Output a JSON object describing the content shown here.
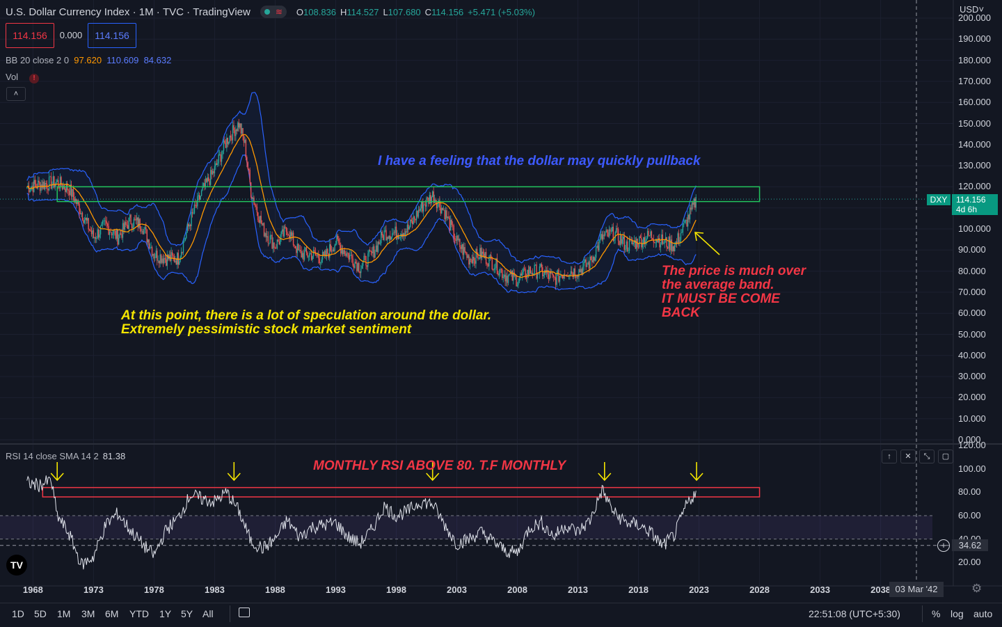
{
  "header": {
    "symbol": "U.S. Dollar Currency Index",
    "sep1": "·",
    "interval": "1M",
    "sep2": "·",
    "exchange": "TVC",
    "sep3": "·",
    "source": "TradingView",
    "pill_icon": "≋",
    "o_label": "O",
    "o_value": "108.836",
    "h_label": "H",
    "h_value": "114.527",
    "l_label": "L",
    "l_value": "107.680",
    "c_label": "C",
    "c_value": "114.156",
    "change": "+5.471 (+5.03%)"
  },
  "order": {
    "sell": "114.156",
    "spread": "0.000",
    "buy": "114.156"
  },
  "bb": {
    "label": "BB 20 close 2 0",
    "basis": "97.620",
    "upper": "110.609",
    "lower": "84.632"
  },
  "vol": {
    "label": "Vol",
    "warn": "!"
  },
  "collapse_icon": "chevron-up-icon",
  "collapse_glyph": "˄",
  "rsi": {
    "label": "RSI 14 close SMA 14 2",
    "value": "81.38",
    "current_tag": "34.62"
  },
  "annotations": {
    "pullback": "I have a feeling that the dollar may quickly pullback",
    "speculation_1": "At this point, there is a lot of speculation around the dollar.",
    "speculation_2": "Extremely pessimistic stock market sentiment",
    "over_1": "The price is much over",
    "over_2": "the average band.",
    "over_3": "IT MUST BE COME",
    "over_4": "BACK",
    "rsi_note": "MONTHLY RSI ABOVE 80. T.F MONTHLY"
  },
  "price_axis": {
    "currency": "USD˅",
    "ticks": [
      "200.000",
      "190.000",
      "180.000",
      "170.000",
      "160.000",
      "150.000",
      "140.000",
      "130.000",
      "120.000",
      "110.000",
      "100.000",
      "90.000",
      "80.000",
      "70.000",
      "60.000",
      "50.000",
      "40.000",
      "30.000",
      "20.000",
      "10.000",
      "0.000"
    ],
    "symbol_tag": "DXY",
    "last_price": "114.156",
    "countdown": "4d 6h"
  },
  "rsi_axis": {
    "ticks": [
      "120.00",
      "100.00",
      "80.00",
      "60.00",
      "40.00",
      "20.00"
    ]
  },
  "time_axis": {
    "ticks": [
      "1968",
      "1973",
      "1978",
      "1983",
      "1988",
      "1993",
      "1998",
      "2003",
      "2008",
      "2013",
      "2018",
      "2023",
      "2028",
      "2033",
      "2038"
    ],
    "crosshair_date": "03 Mar '42"
  },
  "pane_buttons": [
    "↑",
    "✕",
    "⤡",
    "▢"
  ],
  "bottom_bar": {
    "timeframes": [
      "1D",
      "5D",
      "1M",
      "3M",
      "6M",
      "YTD",
      "1Y",
      "5Y",
      "All"
    ],
    "clock": "22:51:08 (UTC+5:30)",
    "pct": "%",
    "log": "log",
    "auto": "auto"
  },
  "logo_text": "TV",
  "colors": {
    "bg": "#131722",
    "up": "#26a69a",
    "down": "#ef5350",
    "bb_basis": "#ff9800",
    "bb_band": "#2962ff",
    "zone": "#22c55e",
    "rsi_zone": "#f23645"
  },
  "chart_data": [
    {
      "type": "candlestick",
      "symbol": "DXY",
      "interval": "1M",
      "x_range": [
        1967,
        2044
      ],
      "ylim": [
        0,
        200
      ],
      "indicators": [
        "BB 20 close 2 0"
      ],
      "close_path": [
        [
          1967.5,
          120
        ],
        [
          1968.5,
          121
        ],
        [
          1970,
          122
        ],
        [
          1971,
          119
        ],
        [
          1972,
          108
        ],
        [
          1973,
          96
        ],
        [
          1974,
          102
        ],
        [
          1975,
          96
        ],
        [
          1976,
          104
        ],
        [
          1977,
          102
        ],
        [
          1978,
          88
        ],
        [
          1979,
          86
        ],
        [
          1980,
          86
        ],
        [
          1981,
          104
        ],
        [
          1982,
          118
        ],
        [
          1983,
          128
        ],
        [
          1984,
          142
        ],
        [
          1985,
          150
        ],
        [
          1985.5,
          140
        ],
        [
          1986,
          118
        ],
        [
          1987,
          100
        ],
        [
          1988,
          92
        ],
        [
          1989,
          100
        ],
        [
          1990,
          88
        ],
        [
          1991,
          88
        ],
        [
          1992,
          86
        ],
        [
          1993,
          94
        ],
        [
          1994,
          88
        ],
        [
          1995,
          82
        ],
        [
          1996,
          88
        ],
        [
          1997,
          98
        ],
        [
          1998,
          98
        ],
        [
          1999,
          100
        ],
        [
          2000,
          110
        ],
        [
          2001,
          116
        ],
        [
          2002,
          108
        ],
        [
          2003,
          94
        ],
        [
          2004,
          86
        ],
        [
          2005,
          88
        ],
        [
          2006,
          84
        ],
        [
          2007,
          78
        ],
        [
          2008,
          76
        ],
        [
          2009,
          80
        ],
        [
          2010,
          80
        ],
        [
          2011,
          76
        ],
        [
          2012,
          80
        ],
        [
          2013,
          80
        ],
        [
          2014,
          84
        ],
        [
          2015,
          96
        ],
        [
          2016,
          98
        ],
        [
          2017,
          92
        ],
        [
          2018,
          94
        ],
        [
          2019,
          97
        ],
        [
          2020,
          94
        ],
        [
          2021,
          92
        ],
        [
          2022,
          104
        ],
        [
          2022.8,
          114
        ]
      ],
      "resistance_zone": {
        "y_from": 113,
        "y_to": 120,
        "x_from": 1970,
        "x_to": 2028
      }
    },
    {
      "type": "line",
      "name": "RSI",
      "ylim": [
        0,
        120
      ],
      "upper_band": 60,
      "lower_band": 40,
      "overbought_zone": {
        "y_from": 76,
        "y_to": 84
      },
      "values": [
        [
          1967.5,
          88
        ],
        [
          1968.5,
          86
        ],
        [
          1969.5,
          90
        ],
        [
          1970,
          60
        ],
        [
          1971,
          44
        ],
        [
          1972,
          18
        ],
        [
          1973,
          25
        ],
        [
          1974,
          52
        ],
        [
          1975,
          62
        ],
        [
          1976,
          48
        ],
        [
          1977,
          36
        ],
        [
          1978,
          26
        ],
        [
          1979,
          48
        ],
        [
          1980,
          58
        ],
        [
          1981,
          78
        ],
        [
          1982,
          74
        ],
        [
          1983,
          72
        ],
        [
          1984,
          80
        ],
        [
          1985,
          64
        ],
        [
          1986,
          38
        ],
        [
          1987,
          32
        ],
        [
          1988,
          40
        ],
        [
          1989,
          56
        ],
        [
          1990,
          42
        ],
        [
          1991,
          50
        ],
        [
          1992,
          52
        ],
        [
          1993,
          54
        ],
        [
          1994,
          42
        ],
        [
          1995,
          36
        ],
        [
          1996,
          48
        ],
        [
          1997,
          68
        ],
        [
          1998,
          60
        ],
        [
          1999,
          64
        ],
        [
          2000,
          72
        ],
        [
          2001,
          70
        ],
        [
          2002,
          52
        ],
        [
          2003,
          36
        ],
        [
          2004,
          40
        ],
        [
          2005,
          46
        ],
        [
          2006,
          38
        ],
        [
          2007,
          30
        ],
        [
          2008,
          28
        ],
        [
          2009,
          50
        ],
        [
          2010,
          54
        ],
        [
          2011,
          42
        ],
        [
          2012,
          52
        ],
        [
          2013,
          46
        ],
        [
          2014,
          56
        ],
        [
          2015,
          82
        ],
        [
          2016,
          62
        ],
        [
          2017,
          54
        ],
        [
          2018,
          52
        ],
        [
          2019,
          46
        ],
        [
          2020,
          34
        ],
        [
          2021,
          44
        ],
        [
          2022,
          70
        ],
        [
          2022.8,
          81
        ]
      ]
    }
  ]
}
